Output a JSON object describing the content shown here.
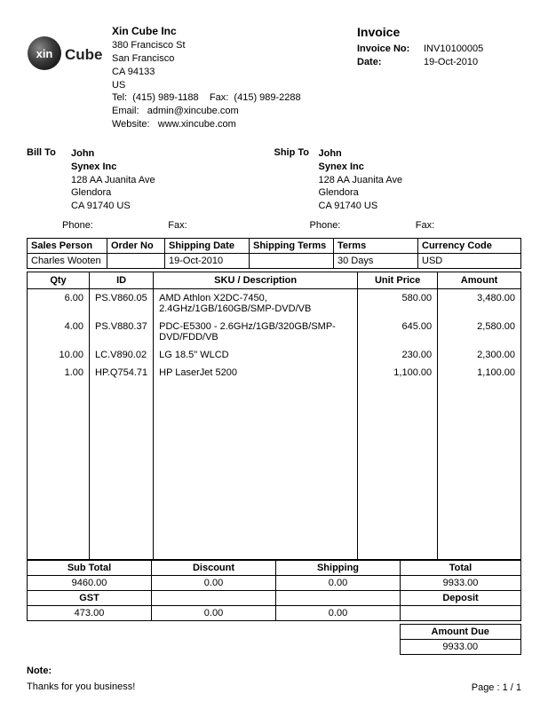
{
  "company": {
    "name": "Xin Cube Inc",
    "addr1": "380 Francisco St",
    "city": "San Francisco",
    "region": "CA 94133",
    "country": "US",
    "tel_label": "Tel:",
    "tel": "(415) 989-1188",
    "fax_label": "Fax:",
    "fax": "(415) 989-2288",
    "email_label": "Email:",
    "email": "admin@xincube.com",
    "web_label": "Website:",
    "web": "www.xincube.com"
  },
  "invoice": {
    "title": "Invoice",
    "no_label": "Invoice No:",
    "no": "INV10100005",
    "date_label": "Date:",
    "date": "19-Oct-2010"
  },
  "billto": {
    "label": "Bill To",
    "name": "John",
    "company": "Synex Inc",
    "addr1": "128 AA Juanita Ave",
    "city": "Glendora",
    "region": "CA 91740 US"
  },
  "shipto": {
    "label": "Ship To",
    "name": "John",
    "company": "Synex Inc",
    "addr1": "128 AA Juanita Ave",
    "city": "Glendora",
    "region": "CA 91740 US"
  },
  "contact": {
    "phone_label": "Phone:",
    "fax_label": "Fax:"
  },
  "info": {
    "sales_person_h": "Sales Person",
    "order_no_h": "Order No",
    "ship_date_h": "Shipping Date",
    "ship_terms_h": "Shipping Terms",
    "terms_h": "Terms",
    "currency_h": "Currency Code",
    "sales_person": "Charles Wooten",
    "order_no": "",
    "ship_date": "19-Oct-2010",
    "ship_terms": "",
    "terms": "30 Days",
    "currency": "USD"
  },
  "items": {
    "headers": {
      "qty": "Qty",
      "id": "ID",
      "sku": "SKU / Description",
      "unit_price": "Unit Price",
      "amount": "Amount"
    },
    "rows": [
      {
        "qty": "6.00",
        "id": "PS.V860.05",
        "sku": "AMD Athlon X2DC-7450, 2.4GHz/1GB/160GB/SMP-DVD/VB",
        "unit_price": "580.00",
        "amount": "3,480.00"
      },
      {
        "qty": "4.00",
        "id": "PS.V880.37",
        "sku": "PDC-E5300 - 2.6GHz/1GB/320GB/SMP-DVD/FDD/VB",
        "unit_price": "645.00",
        "amount": "2,580.00"
      },
      {
        "qty": "10.00",
        "id": "LC.V890.02",
        "sku": "LG 18.5\" WLCD",
        "unit_price": "230.00",
        "amount": "2,300.00"
      },
      {
        "qty": "1.00",
        "id": "HP.Q754.71",
        "sku": "HP LaserJet 5200",
        "unit_price": "1,100.00",
        "amount": "1,100.00"
      }
    ]
  },
  "totals": {
    "subtotal_h": "Sub Total",
    "discount_h": "Discount",
    "shipping_h": "Shipping",
    "total_h": "Total",
    "gst_h": "GST",
    "deposit_h": "Deposit",
    "amount_due_h": "Amount Due",
    "subtotal": "9460.00",
    "discount": "0.00",
    "shipping": "0.00",
    "total": "9933.00",
    "gst": "473.00",
    "r2c2": "0.00",
    "r2c3": "0.00",
    "deposit": "",
    "amount_due": "9933.00"
  },
  "note": {
    "label": "Note:",
    "text": "Thanks for you business!"
  },
  "page": {
    "text": "Page : 1 / 1"
  },
  "colors": {
    "logo_bg": "#3a3a3a",
    "logo_text": "#ffffff",
    "logo_outer": "#707070"
  },
  "col_widths": {
    "qty": 70,
    "id": 70,
    "sku": 230,
    "unit_price": 90,
    "amount": 85
  }
}
